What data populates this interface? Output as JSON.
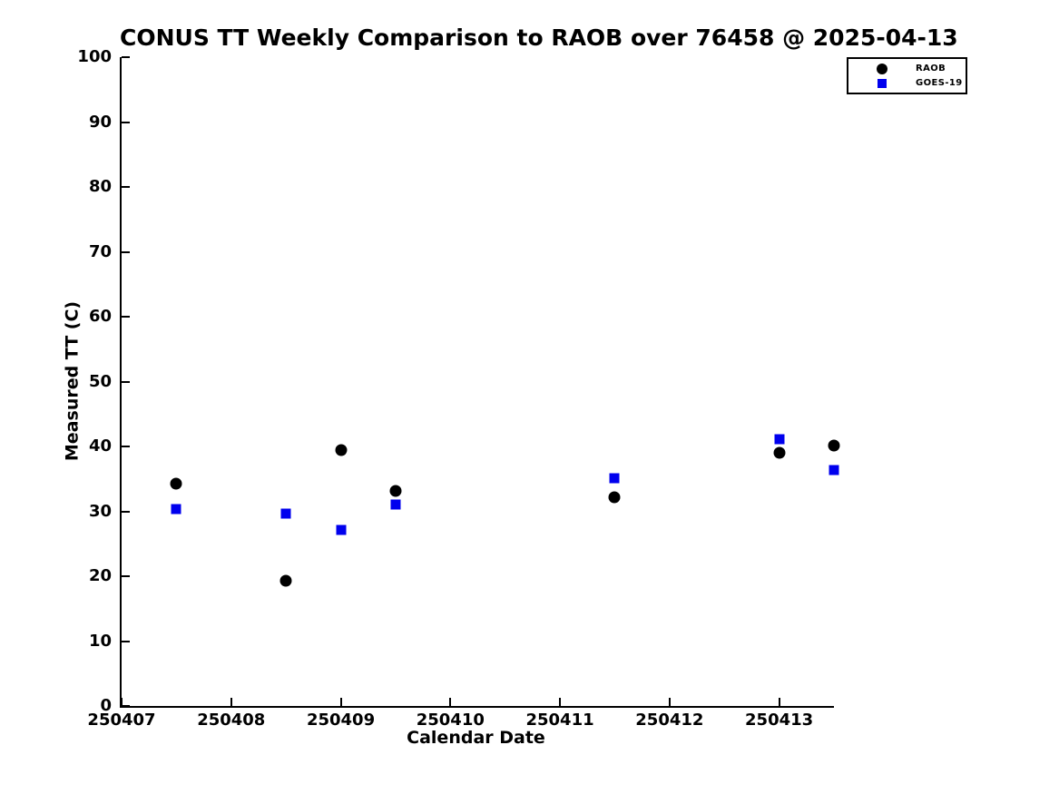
{
  "chart_data": {
    "type": "scatter",
    "title": "CONUS TT Weekly Comparison to RAOB over 76458 @ 2025-04-13",
    "xlabel": "Calendar Date",
    "ylabel": "Measured TT (C)",
    "xlim": [
      250407,
      250413.5
    ],
    "ylim": [
      0,
      100
    ],
    "x_ticks": [
      250407,
      250408,
      250409,
      250410,
      250411,
      250412,
      250413
    ],
    "y_ticks": [
      0,
      10,
      20,
      30,
      40,
      50,
      60,
      70,
      80,
      90,
      100
    ],
    "x": [
      250407.5,
      250408.5,
      250409,
      250409.5,
      250411.5,
      250413,
      250413.5
    ],
    "series": [
      {
        "name": "RAOB",
        "marker": "circle",
        "color": "#000000",
        "values": [
          34.3,
          19.3,
          39.4,
          33.2,
          32.1,
          39.0,
          40.2
        ]
      },
      {
        "name": "GOES-19",
        "marker": "square",
        "color": "#0000ee",
        "values": [
          30.4,
          29.6,
          27.1,
          31.1,
          35.1,
          41.1,
          36.4
        ]
      }
    ],
    "grid": false,
    "legend_position": "top-right-outside"
  },
  "legend": {
    "items": [
      {
        "label": "RAOB",
        "marker": "circle",
        "color": "#000000"
      },
      {
        "label": "GOES-19",
        "marker": "square",
        "color": "#0000ee"
      }
    ]
  }
}
